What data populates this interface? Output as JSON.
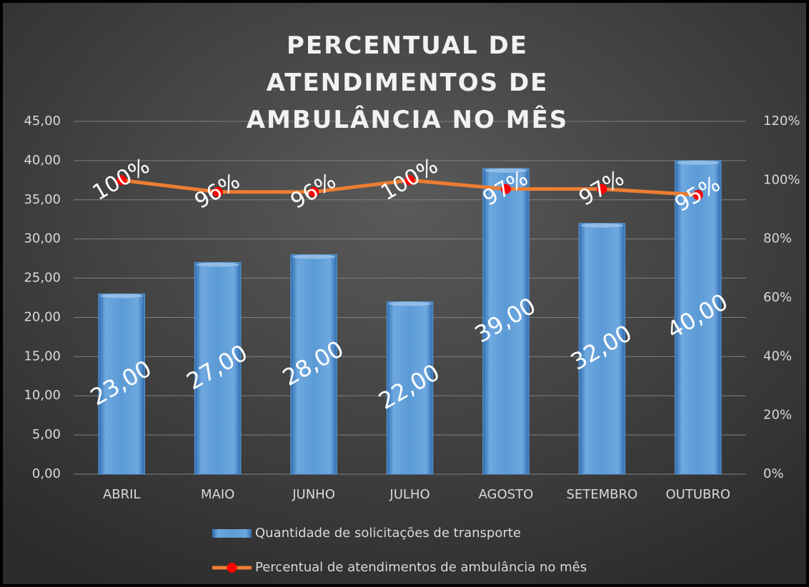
{
  "chart_data": {
    "type": "bar",
    "title": "PERCENTUAL DE ATENDIMENTOS DE AMBULÂNCIA NO MÊS",
    "categories": [
      "ABRIL",
      "MAIO",
      "JUNHO",
      "JULHO",
      "AGOSTO",
      "SETEMBRO",
      "OUTUBRO"
    ],
    "series": [
      {
        "name": "Quantidade de solicitações de transporte",
        "type": "bar",
        "color": "#5b9bd5",
        "values": [
          23,
          27,
          28,
          22,
          39,
          32,
          40
        ],
        "value_labels": [
          "23,00",
          "27,00",
          "28,00",
          "22,00",
          "39,00",
          "32,00",
          "40,00"
        ]
      },
      {
        "name": "Percentual de atendimentos de ambulância no mês",
        "type": "line",
        "axis": "y2",
        "color": "#ed7d31",
        "marker_color": "#ff0000",
        "values": [
          100,
          96,
          96,
          100,
          97,
          97,
          95
        ],
        "value_labels": [
          "100%",
          "96%",
          "96%",
          "100%",
          "97%",
          "97%",
          "95%"
        ]
      }
    ],
    "ylim": [
      0,
      45
    ],
    "yticks": [
      {
        "value": 0,
        "label": "0,00"
      },
      {
        "value": 5,
        "label": "5,00"
      },
      {
        "value": 10,
        "label": "10,00"
      },
      {
        "value": 15,
        "label": "15,00"
      },
      {
        "value": 20,
        "label": "20,00"
      },
      {
        "value": 25,
        "label": "25,00"
      },
      {
        "value": 30,
        "label": "30,00"
      },
      {
        "value": 35,
        "label": "35,00"
      },
      {
        "value": 40,
        "label": "40,00"
      },
      {
        "value": 45,
        "label": "45,00"
      }
    ],
    "y2lim": [
      0,
      120
    ],
    "y2ticks": [
      {
        "value": 0,
        "label": "0%"
      },
      {
        "value": 20,
        "label": "20%"
      },
      {
        "value": 40,
        "label": "40%"
      },
      {
        "value": 60,
        "label": "60%"
      },
      {
        "value": 80,
        "label": "80%"
      },
      {
        "value": 100,
        "label": "100%"
      },
      {
        "value": 120,
        "label": "120%"
      }
    ],
    "grid": true,
    "legend": "bottom"
  }
}
